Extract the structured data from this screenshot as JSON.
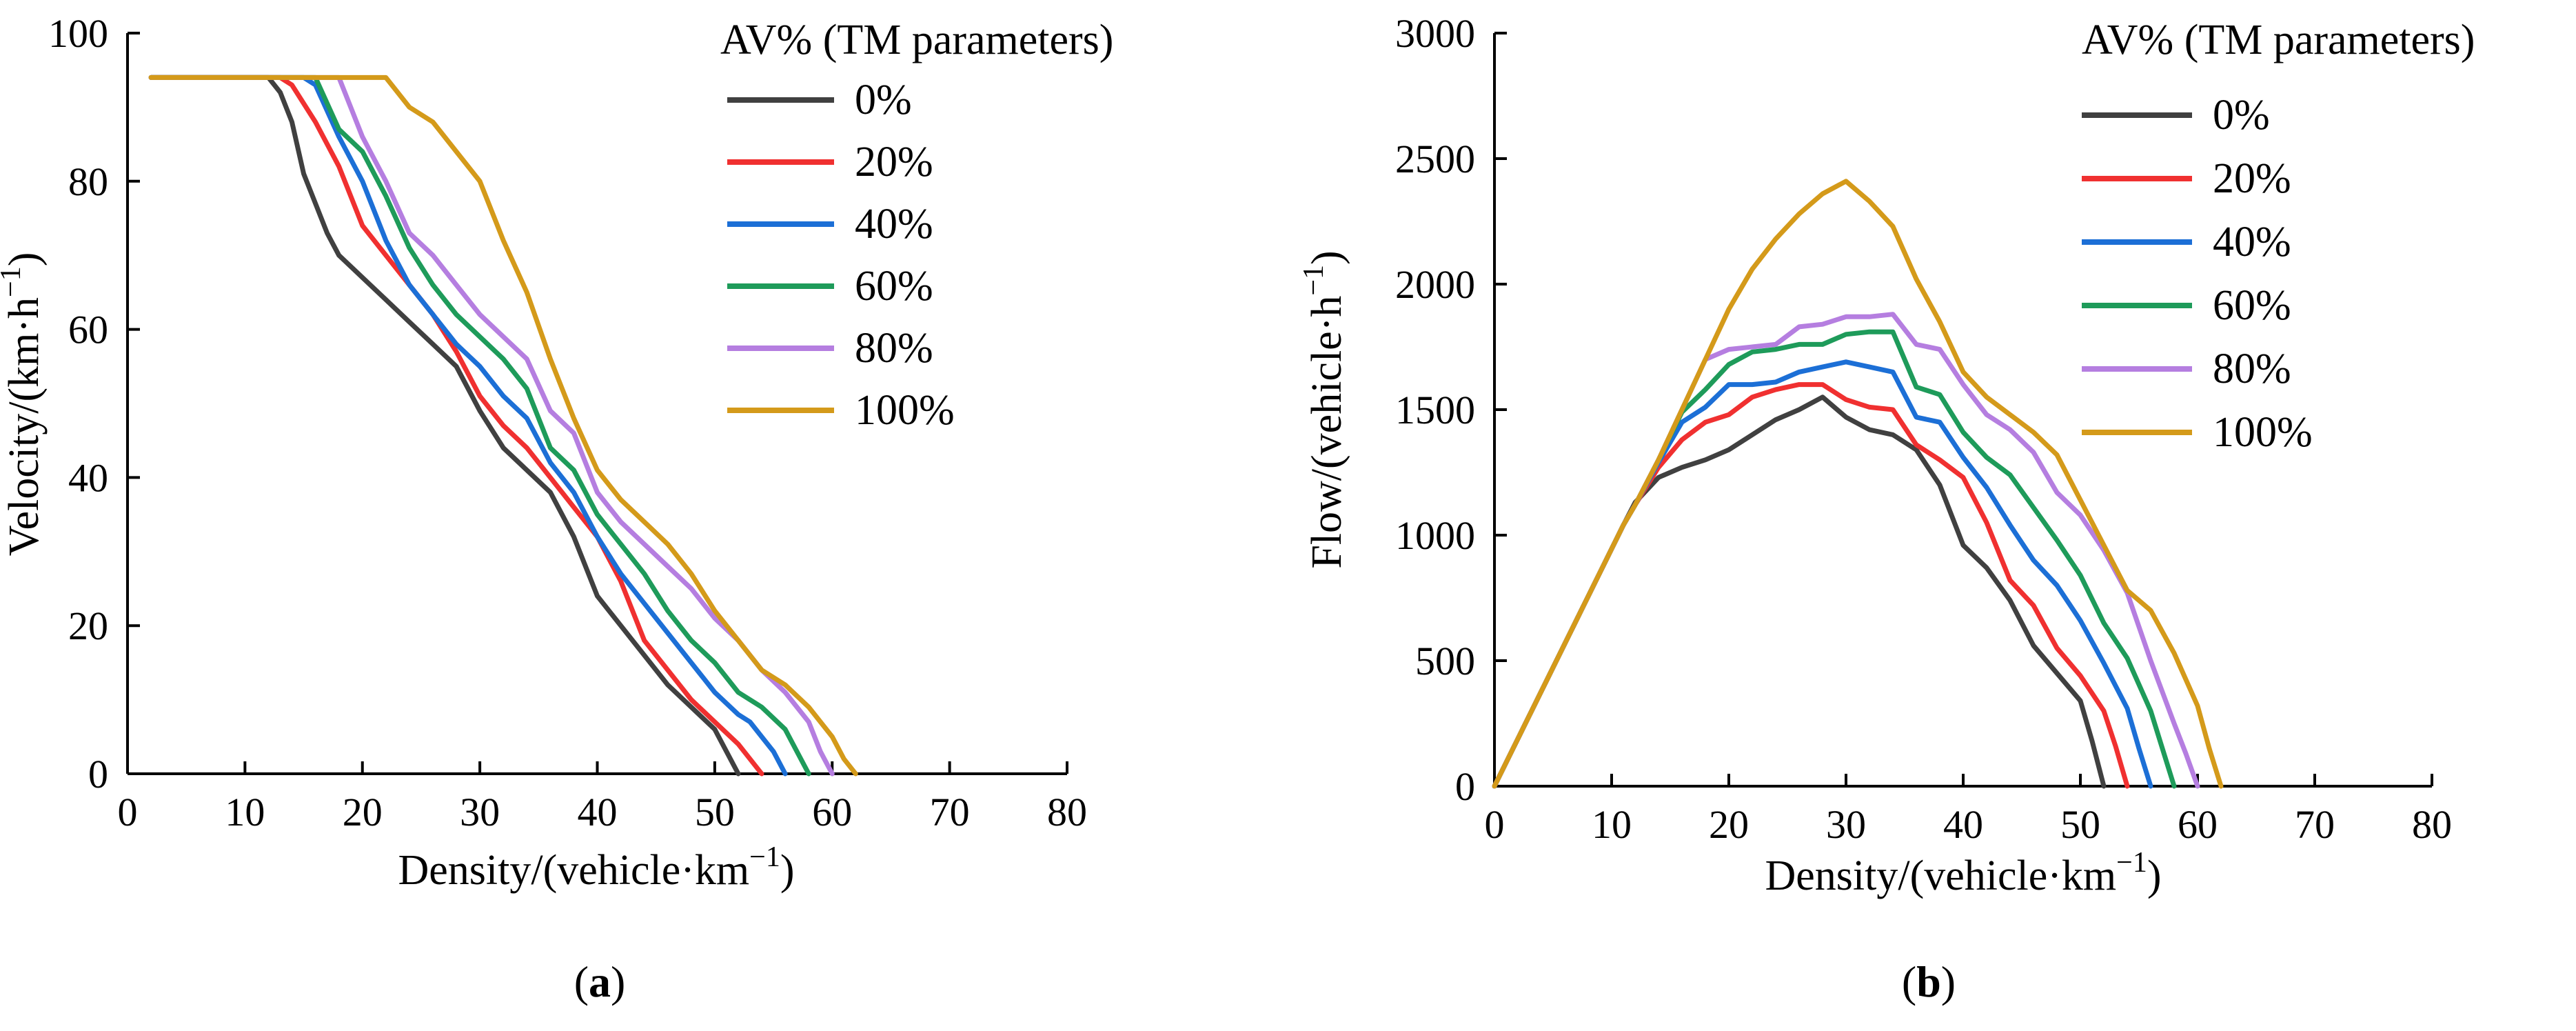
{
  "chart_data": [
    {
      "type": "line",
      "panel_label_open": "(",
      "panel_label": "a",
      "panel_label_close": ")",
      "xlabel": "Density/(vehicle·km",
      "xlabel_sup": "−1",
      "xlabel_close": ")",
      "ylabel": "Velocity/(km·h",
      "ylabel_sup": "−1",
      "ylabel_close": ")",
      "xlim": [
        0,
        80
      ],
      "ylim": [
        0,
        100
      ],
      "xticks": [
        "0",
        "10",
        "20",
        "30",
        "40",
        "50",
        "60",
        "70",
        "80"
      ],
      "yticks": [
        "0",
        "20",
        "40",
        "60",
        "80",
        "100"
      ],
      "legend_title": "AV% (TM parameters)",
      "legend_position": "top-right",
      "series": [
        {
          "name": "0%",
          "color": "#404040",
          "x": [
            2,
            12,
            13,
            14,
            15,
            16,
            17,
            18,
            20,
            22,
            24,
            26,
            28,
            30,
            32,
            34,
            36,
            38,
            40,
            42,
            44,
            46,
            48,
            50,
            51,
            52
          ],
          "y": [
            94,
            94,
            92,
            88,
            81,
            77,
            73,
            70,
            67,
            64,
            61,
            58,
            55,
            49,
            44,
            41,
            38,
            32,
            24,
            20,
            16,
            12,
            9,
            6,
            3,
            0
          ]
        },
        {
          "name": "20%",
          "color": "#f03030",
          "x": [
            2,
            13,
            14,
            16,
            18,
            20,
            22,
            24,
            26,
            28,
            30,
            32,
            34,
            36,
            38,
            40,
            42,
            44,
            46,
            48,
            50,
            52,
            53,
            54
          ],
          "y": [
            94,
            94,
            93,
            88,
            82,
            74,
            70,
            66,
            62,
            57,
            51,
            47,
            44,
            40,
            36,
            32,
            26,
            18,
            14,
            10,
            7,
            4,
            2,
            0
          ]
        },
        {
          "name": "40%",
          "color": "#1c6fd6",
          "x": [
            2,
            14,
            15,
            16,
            18,
            20,
            22,
            24,
            26,
            28,
            30,
            32,
            34,
            36,
            38,
            40,
            42,
            44,
            46,
            48,
            50,
            52,
            53,
            54,
            55,
            56
          ],
          "y": [
            94,
            94,
            94,
            93,
            86,
            80,
            72,
            66,
            62,
            58,
            55,
            51,
            48,
            42,
            38,
            32,
            27,
            23,
            19,
            15,
            11,
            8,
            7,
            5,
            3,
            0
          ]
        },
        {
          "name": "60%",
          "color": "#1e9b5a",
          "x": [
            2,
            16,
            18,
            20,
            22,
            24,
            26,
            28,
            30,
            32,
            34,
            36,
            38,
            40,
            42,
            44,
            46,
            48,
            50,
            52,
            54,
            56,
            57,
            58
          ],
          "y": [
            94,
            94,
            87,
            84,
            78,
            71,
            66,
            62,
            59,
            56,
            52,
            44,
            41,
            35,
            31,
            27,
            22,
            18,
            15,
            11,
            9,
            6,
            3,
            0
          ]
        },
        {
          "name": "80%",
          "color": "#b57ee0",
          "x": [
            2,
            18,
            20,
            22,
            24,
            26,
            28,
            30,
            32,
            34,
            36,
            38,
            40,
            42,
            44,
            46,
            48,
            50,
            52,
            54,
            56,
            58,
            59,
            60
          ],
          "y": [
            94,
            94,
            86,
            80,
            73,
            70,
            66,
            62,
            59,
            56,
            49,
            46,
            38,
            34,
            31,
            28,
            25,
            21,
            18,
            14,
            11,
            7,
            3,
            0
          ]
        },
        {
          "name": "100%",
          "color": "#d49a1a",
          "x": [
            2,
            22,
            24,
            26,
            28,
            30,
            32,
            34,
            36,
            38,
            40,
            42,
            44,
            46,
            48,
            50,
            52,
            54,
            56,
            58,
            60,
            61,
            62
          ],
          "y": [
            94,
            94,
            90,
            88,
            84,
            80,
            72,
            65,
            56,
            48,
            41,
            37,
            34,
            31,
            27,
            22,
            18,
            14,
            12,
            9,
            5,
            2,
            0
          ]
        }
      ]
    },
    {
      "type": "line",
      "panel_label_open": "(",
      "panel_label": "b",
      "panel_label_close": ")",
      "xlabel": "Density/(vehicle·km",
      "xlabel_sup": "−1",
      "xlabel_close": ")",
      "ylabel": "Flow/(vehicle·h",
      "ylabel_sup": "−1",
      "ylabel_close": ")",
      "xlim": [
        0,
        80
      ],
      "ylim": [
        0,
        3000
      ],
      "xticks": [
        "0",
        "10",
        "20",
        "30",
        "40",
        "50",
        "60",
        "70",
        "80"
      ],
      "yticks": [
        "0",
        "500",
        "1000",
        "1500",
        "2000",
        "2500",
        "3000"
      ],
      "legend_title": "AV% (TM parameters)",
      "legend_position": "top-right",
      "series": [
        {
          "name": "0%",
          "color": "#404040",
          "x": [
            0,
            11,
            12,
            14,
            16,
            18,
            20,
            22,
            24,
            26,
            28,
            30,
            32,
            34,
            36,
            38,
            40,
            42,
            44,
            46,
            48,
            50,
            51,
            52
          ],
          "y": [
            0,
            1040,
            1130,
            1230,
            1270,
            1300,
            1340,
            1400,
            1460,
            1500,
            1550,
            1470,
            1420,
            1400,
            1340,
            1200,
            960,
            870,
            740,
            560,
            450,
            340,
            180,
            0
          ]
        },
        {
          "name": "20%",
          "color": "#f03030",
          "x": [
            0,
            11,
            12,
            14,
            16,
            18,
            20,
            22,
            24,
            26,
            28,
            30,
            32,
            34,
            36,
            38,
            40,
            42,
            44,
            46,
            48,
            50,
            52,
            53,
            54
          ],
          "y": [
            0,
            1040,
            1120,
            1270,
            1380,
            1450,
            1480,
            1550,
            1580,
            1600,
            1600,
            1540,
            1510,
            1500,
            1360,
            1300,
            1230,
            1050,
            820,
            720,
            550,
            440,
            300,
            160,
            0
          ]
        },
        {
          "name": "40%",
          "color": "#1c6fd6",
          "x": [
            0,
            11,
            12,
            14,
            16,
            18,
            20,
            22,
            24,
            26,
            28,
            30,
            32,
            34,
            36,
            38,
            40,
            42,
            44,
            46,
            48,
            50,
            52,
            54,
            55,
            56
          ],
          "y": [
            0,
            1040,
            1120,
            1290,
            1450,
            1510,
            1600,
            1600,
            1610,
            1650,
            1670,
            1690,
            1670,
            1650,
            1470,
            1450,
            1310,
            1190,
            1040,
            900,
            800,
            660,
            490,
            310,
            150,
            0
          ]
        },
        {
          "name": "60%",
          "color": "#1e9b5a",
          "x": [
            0,
            11,
            12,
            14,
            16,
            18,
            20,
            22,
            24,
            26,
            28,
            30,
            32,
            34,
            36,
            38,
            40,
            42,
            44,
            46,
            48,
            50,
            52,
            54,
            56,
            57,
            58
          ],
          "y": [
            0,
            1040,
            1120,
            1300,
            1490,
            1580,
            1680,
            1730,
            1740,
            1760,
            1760,
            1800,
            1810,
            1810,
            1590,
            1560,
            1410,
            1310,
            1240,
            1110,
            980,
            840,
            650,
            510,
            300,
            150,
            0
          ]
        },
        {
          "name": "80%",
          "color": "#b57ee0",
          "x": [
            0,
            11,
            12,
            14,
            16,
            18,
            20,
            22,
            24,
            26,
            28,
            30,
            32,
            34,
            36,
            38,
            40,
            42,
            44,
            46,
            48,
            50,
            52,
            54,
            56,
            58,
            59,
            60
          ],
          "y": [
            0,
            1040,
            1120,
            1300,
            1500,
            1700,
            1740,
            1750,
            1760,
            1830,
            1840,
            1870,
            1870,
            1880,
            1760,
            1740,
            1600,
            1480,
            1420,
            1330,
            1170,
            1080,
            940,
            770,
            500,
            250,
            130,
            0
          ]
        },
        {
          "name": "100%",
          "color": "#d49a1a",
          "x": [
            0,
            11,
            12,
            14,
            16,
            18,
            20,
            22,
            24,
            26,
            28,
            30,
            32,
            34,
            36,
            38,
            40,
            42,
            44,
            46,
            48,
            50,
            52,
            54,
            56,
            58,
            60,
            61,
            62
          ],
          "y": [
            0,
            1040,
            1120,
            1300,
            1500,
            1700,
            1900,
            2060,
            2180,
            2280,
            2360,
            2410,
            2330,
            2230,
            2020,
            1850,
            1650,
            1550,
            1480,
            1410,
            1320,
            1140,
            960,
            780,
            700,
            530,
            320,
            150,
            0
          ]
        }
      ]
    }
  ]
}
